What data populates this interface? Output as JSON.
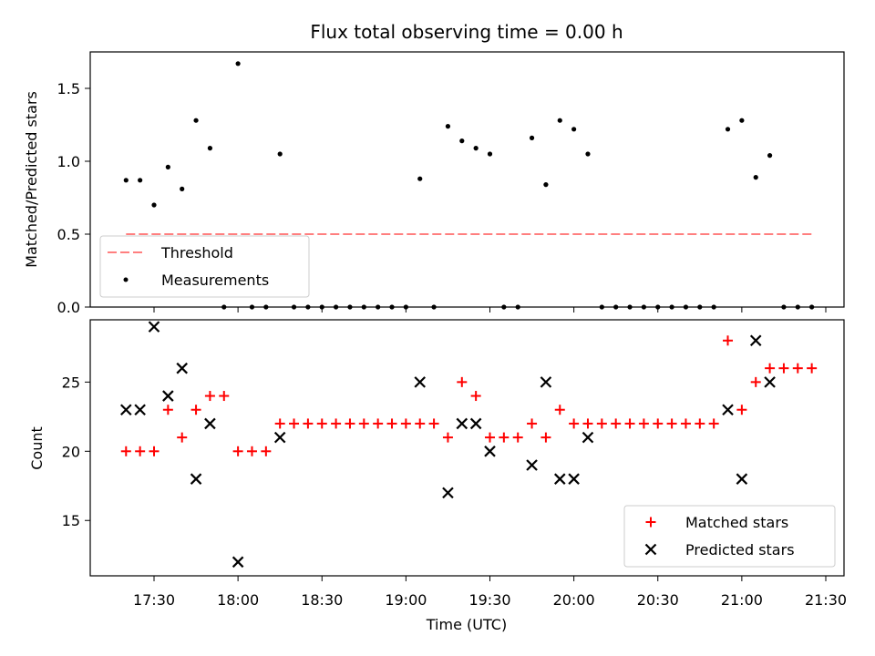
{
  "title": "Flux total observing time = 0.00 h",
  "x_axis": {
    "label": "Time (UTC)",
    "ticks": [
      "17:30",
      "18:00",
      "18:30",
      "19:00",
      "19:30",
      "20:00",
      "20:30",
      "21:00",
      "21:30"
    ]
  },
  "colors": {
    "matched": "#ff0000",
    "predicted": "#000000",
    "threshold": "#ff7f7f",
    "measurements": "#000000"
  },
  "chart_data": [
    {
      "type": "scatter",
      "ylabel": "Matched/Predicted stars",
      "ylim": [
        0,
        1.75
      ],
      "yticks": [
        "0.0",
        "0.5",
        "1.0",
        "1.5"
      ],
      "legend_location": "lower-left",
      "threshold": {
        "name": "Threshold",
        "value": 0.5,
        "x_range": [
          "17:20",
          "21:25"
        ]
      },
      "measurements_name": "Measurements",
      "x": [
        "17:20",
        "17:25",
        "17:30",
        "17:35",
        "17:40",
        "17:45",
        "17:50",
        "17:55",
        "18:00",
        "18:05",
        "18:10",
        "18:15",
        "18:20",
        "18:25",
        "18:30",
        "18:35",
        "18:40",
        "18:45",
        "18:50",
        "18:55",
        "19:00",
        "19:05",
        "19:10",
        "19:15",
        "19:20",
        "19:25",
        "19:30",
        "19:35",
        "19:40",
        "19:45",
        "19:50",
        "19:55",
        "20:00",
        "20:05",
        "20:10",
        "20:15",
        "20:20",
        "20:25",
        "20:30",
        "20:35",
        "20:40",
        "20:45",
        "20:50",
        "20:55",
        "21:00",
        "21:05",
        "21:10",
        "21:15",
        "21:20",
        "21:25"
      ],
      "values": [
        0.87,
        0.87,
        0.7,
        0.96,
        0.81,
        1.28,
        1.09,
        0.0,
        1.67,
        0.0,
        0.0,
        1.05,
        0.0,
        0.0,
        0.0,
        0.0,
        0.0,
        0.0,
        0.0,
        0.0,
        0.0,
        0.88,
        0.0,
        1.24,
        1.14,
        1.09,
        1.05,
        0.0,
        0.0,
        1.16,
        0.84,
        1.28,
        1.22,
        1.05,
        0.0,
        0.0,
        0.0,
        0.0,
        0.0,
        0.0,
        0.0,
        0.0,
        0.0,
        1.22,
        1.28,
        0.89,
        1.04,
        0.0,
        0.0,
        0.0
      ]
    },
    {
      "type": "scatter",
      "ylabel": "Count",
      "ylim": [
        11,
        29.5
      ],
      "yticks": [
        "15",
        "20",
        "25"
      ],
      "legend_location": "lower-right",
      "series": [
        {
          "name": "Matched stars",
          "marker": "plus",
          "x": [
            "17:20",
            "17:25",
            "17:30",
            "17:35",
            "17:40",
            "17:45",
            "17:50",
            "17:55",
            "18:00",
            "18:05",
            "18:10",
            "18:15",
            "18:20",
            "18:25",
            "18:30",
            "18:35",
            "18:40",
            "18:45",
            "18:50",
            "18:55",
            "19:00",
            "19:05",
            "19:10",
            "19:15",
            "19:20",
            "19:25",
            "19:30",
            "19:35",
            "19:40",
            "19:45",
            "19:50",
            "19:55",
            "20:00",
            "20:05",
            "20:10",
            "20:15",
            "20:20",
            "20:25",
            "20:30",
            "20:35",
            "20:40",
            "20:45",
            "20:50",
            "20:55",
            "21:00",
            "21:05",
            "21:10",
            "21:15",
            "21:20",
            "21:25"
          ],
          "values": [
            20,
            20,
            20,
            23,
            21,
            23,
            24,
            24,
            20,
            20,
            20,
            22,
            22,
            22,
            22,
            22,
            22,
            22,
            22,
            22,
            22,
            22,
            22,
            21,
            25,
            24,
            21,
            21,
            21,
            22,
            21,
            23,
            22,
            22,
            22,
            22,
            22,
            22,
            22,
            22,
            22,
            22,
            22,
            28,
            23,
            25,
            26,
            26,
            26,
            26
          ]
        },
        {
          "name": "Predicted stars",
          "marker": "x",
          "x": [
            "17:20",
            "17:25",
            "17:30",
            "17:35",
            "17:40",
            "17:45",
            "17:50",
            "18:00",
            "18:15",
            "19:05",
            "19:15",
            "19:20",
            "19:25",
            "19:30",
            "19:45",
            "19:50",
            "19:55",
            "20:00",
            "20:05",
            "20:55",
            "21:00",
            "21:05",
            "21:10"
          ],
          "values": [
            23,
            23,
            29,
            24,
            26,
            18,
            22,
            12,
            21,
            25,
            17,
            22,
            22,
            20,
            19,
            25,
            18,
            18,
            21,
            23,
            18,
            28,
            25
          ]
        }
      ]
    }
  ]
}
